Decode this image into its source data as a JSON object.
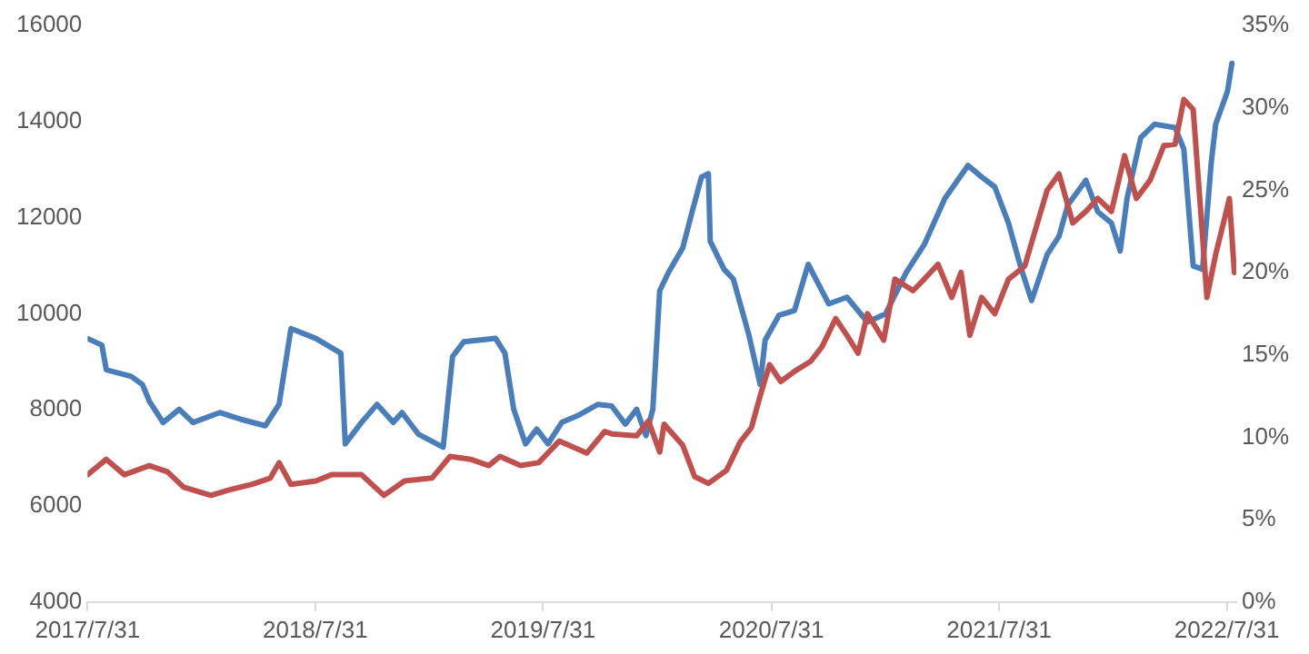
{
  "chart_data": {
    "type": "line",
    "grid": false,
    "legend": false,
    "marker": "none",
    "line_style": "solid",
    "xlim": [
      "2017-07-31",
      "2022-08-15"
    ],
    "xticks": [
      {
        "value": "2017-07-31",
        "label": "2017/7/31"
      },
      {
        "value": "2018-07-31",
        "label": "2018/7/31"
      },
      {
        "value": "2019-07-31",
        "label": "2019/7/31"
      },
      {
        "value": "2020-07-31",
        "label": "2020/7/31"
      },
      {
        "value": "2021-07-31",
        "label": "2021/7/31"
      },
      {
        "value": "2022-07-31",
        "label": "2022/7/31"
      }
    ],
    "ylim": [
      4000,
      16000
    ],
    "yticks": [
      4000,
      6000,
      8000,
      10000,
      12000,
      14000,
      16000
    ],
    "y2lim": [
      0,
      35
    ],
    "y2ticks": [
      {
        "value": 0,
        "label": "0%"
      },
      {
        "value": 5,
        "label": "5%"
      },
      {
        "value": 10,
        "label": "10%"
      },
      {
        "value": 15,
        "label": "15%"
      },
      {
        "value": 20,
        "label": "20%"
      },
      {
        "value": 25,
        "label": "25%"
      },
      {
        "value": 30,
        "label": "30%"
      },
      {
        "value": 35,
        "label": "35%"
      }
    ],
    "series": [
      {
        "color": "#c0504d",
        "x": [
          "2017-07-31",
          "2017-08-30",
          "2017-09-28",
          "2017-11-07",
          "2017-12-06",
          "2018-01-01",
          "2018-02-14",
          "2018-03-11",
          "2018-04-21",
          "2018-05-20",
          "2018-06-03",
          "2018-06-22",
          "2018-08-01",
          "2018-08-26",
          "2018-10-13",
          "2018-11-18",
          "2018-12-21",
          "2019-02-03",
          "2019-03-04",
          "2019-04-06",
          "2019-05-05",
          "2019-05-23",
          "2019-06-25",
          "2019-07-24",
          "2019-08-26",
          "2019-10-09",
          "2019-11-07",
          "2019-11-18",
          "2019-12-28",
          "2020-01-16",
          "2020-02-03",
          "2020-02-10",
          "2020-03-11",
          "2020-03-30",
          "2020-04-21",
          "2020-05-20",
          "2020-06-11",
          "2020-06-29",
          "2020-07-13",
          "2020-07-28",
          "2020-08-15",
          "2020-09-06",
          "2020-10-02",
          "2020-10-20",
          "2020-11-11",
          "2020-11-29",
          "2020-12-17",
          "2021-01-01",
          "2021-01-27",
          "2021-02-14",
          "2021-03-15",
          "2021-04-02",
          "2021-04-24",
          "2021-05-16",
          "2021-05-31",
          "2021-06-14",
          "2021-07-03",
          "2021-07-24",
          "2021-08-15",
          "2021-09-10",
          "2021-09-24",
          "2021-10-16",
          "2021-11-04",
          "2021-11-26",
          "2021-12-17",
          "2022-01-05",
          "2022-01-27",
          "2022-02-17",
          "2022-03-08",
          "2022-03-30",
          "2022-04-21",
          "2022-05-09",
          "2022-05-23",
          "2022-06-07",
          "2022-06-22",
          "2022-06-29",
          "2022-07-13",
          "2022-07-28",
          "2022-08-04",
          "2022-08-12"
        ],
        "values": [
          6650,
          6970,
          6650,
          6840,
          6710,
          6390,
          6220,
          6320,
          6450,
          6580,
          6900,
          6450,
          6520,
          6650,
          6650,
          6220,
          6520,
          6580,
          7030,
          6970,
          6840,
          7030,
          6840,
          6900,
          7350,
          7100,
          7550,
          7500,
          7460,
          7770,
          7120,
          7700,
          7260,
          6610,
          6470,
          6740,
          7330,
          7630,
          8290,
          8940,
          8590,
          8800,
          9010,
          9310,
          9900,
          9550,
          9180,
          10000,
          9450,
          10720,
          10480,
          10720,
          11030,
          10340,
          10860,
          9550,
          10340,
          10000,
          10720,
          10990,
          11610,
          12570,
          12910,
          11890,
          12130,
          12400,
          12130,
          13290,
          12400,
          12780,
          13500,
          13530,
          14460,
          14250,
          11610,
          10340,
          11230,
          12020,
          12400,
          10860
        ]
      },
      {
        "color": "#4a7ebb",
        "axis": "y2",
        "x": [
          "2017-07-31",
          "2017-08-23",
          "2017-08-30",
          "2017-10-09",
          "2017-10-27",
          "2017-11-07",
          "2017-11-29",
          "2017-12-25",
          "2018-01-16",
          "2018-02-28",
          "2018-04-02",
          "2018-05-12",
          "2018-06-03",
          "2018-06-22",
          "2018-08-01",
          "2018-09-10",
          "2018-09-17",
          "2018-10-13",
          "2018-11-07",
          "2018-12-03",
          "2018-12-17",
          "2019-01-12",
          "2019-02-21",
          "2019-03-08",
          "2019-03-26",
          "2019-05-16",
          "2019-05-31",
          "2019-06-14",
          "2019-07-03",
          "2019-07-21",
          "2019-08-08",
          "2019-08-30",
          "2019-09-24",
          "2019-10-27",
          "2019-11-18",
          "2019-12-10",
          "2019-12-28",
          "2020-01-12",
          "2020-01-23",
          "2020-02-03",
          "2020-02-17",
          "2020-03-11",
          "2020-03-26",
          "2020-04-10",
          "2020-04-21",
          "2020-04-24",
          "2020-05-16",
          "2020-05-31",
          "2020-06-25",
          "2020-07-13",
          "2020-07-21",
          "2020-08-12",
          "2020-09-06",
          "2020-09-28",
          "2020-10-13",
          "2020-10-31",
          "2020-11-29",
          "2021-01-01",
          "2021-01-30",
          "2021-03-04",
          "2021-04-02",
          "2021-05-05",
          "2021-06-11",
          "2021-07-03",
          "2021-07-24",
          "2021-08-15",
          "2021-09-03",
          "2021-09-21",
          "2021-10-16",
          "2021-11-04",
          "2021-11-18",
          "2021-12-17",
          "2022-01-05",
          "2022-01-27",
          "2022-02-10",
          "2022-02-21",
          "2022-03-15",
          "2022-04-06",
          "2022-05-09",
          "2022-05-23",
          "2022-06-07",
          "2022-06-22",
          "2022-07-06",
          "2022-07-13",
          "2022-08-01",
          "2022-08-08"
        ],
        "values": [
          16.0,
          15.6,
          14.1,
          13.7,
          13.2,
          12.2,
          10.9,
          11.7,
          10.9,
          11.5,
          11.1,
          10.7,
          12.0,
          16.6,
          16.0,
          15.1,
          9.6,
          10.9,
          12.0,
          10.9,
          11.5,
          10.2,
          9.4,
          14.9,
          15.8,
          16.0,
          15.1,
          11.7,
          9.6,
          10.5,
          9.6,
          10.9,
          11.3,
          12.0,
          11.9,
          10.8,
          11.7,
          10.1,
          11.7,
          18.9,
          20.0,
          21.5,
          23.7,
          25.8,
          26.0,
          21.9,
          20.2,
          19.6,
          16.2,
          13.2,
          15.9,
          17.4,
          17.7,
          20.5,
          19.4,
          18.1,
          18.5,
          17.0,
          17.5,
          20.0,
          21.7,
          24.5,
          26.5,
          25.8,
          25.2,
          23.0,
          20.4,
          18.3,
          21.1,
          22.2,
          24.1,
          25.6,
          23.7,
          23.0,
          21.3,
          24.5,
          28.2,
          29.0,
          28.8,
          27.5,
          20.4,
          20.2,
          26.7,
          29.0,
          31.0,
          32.7
        ]
      }
    ]
  }
}
